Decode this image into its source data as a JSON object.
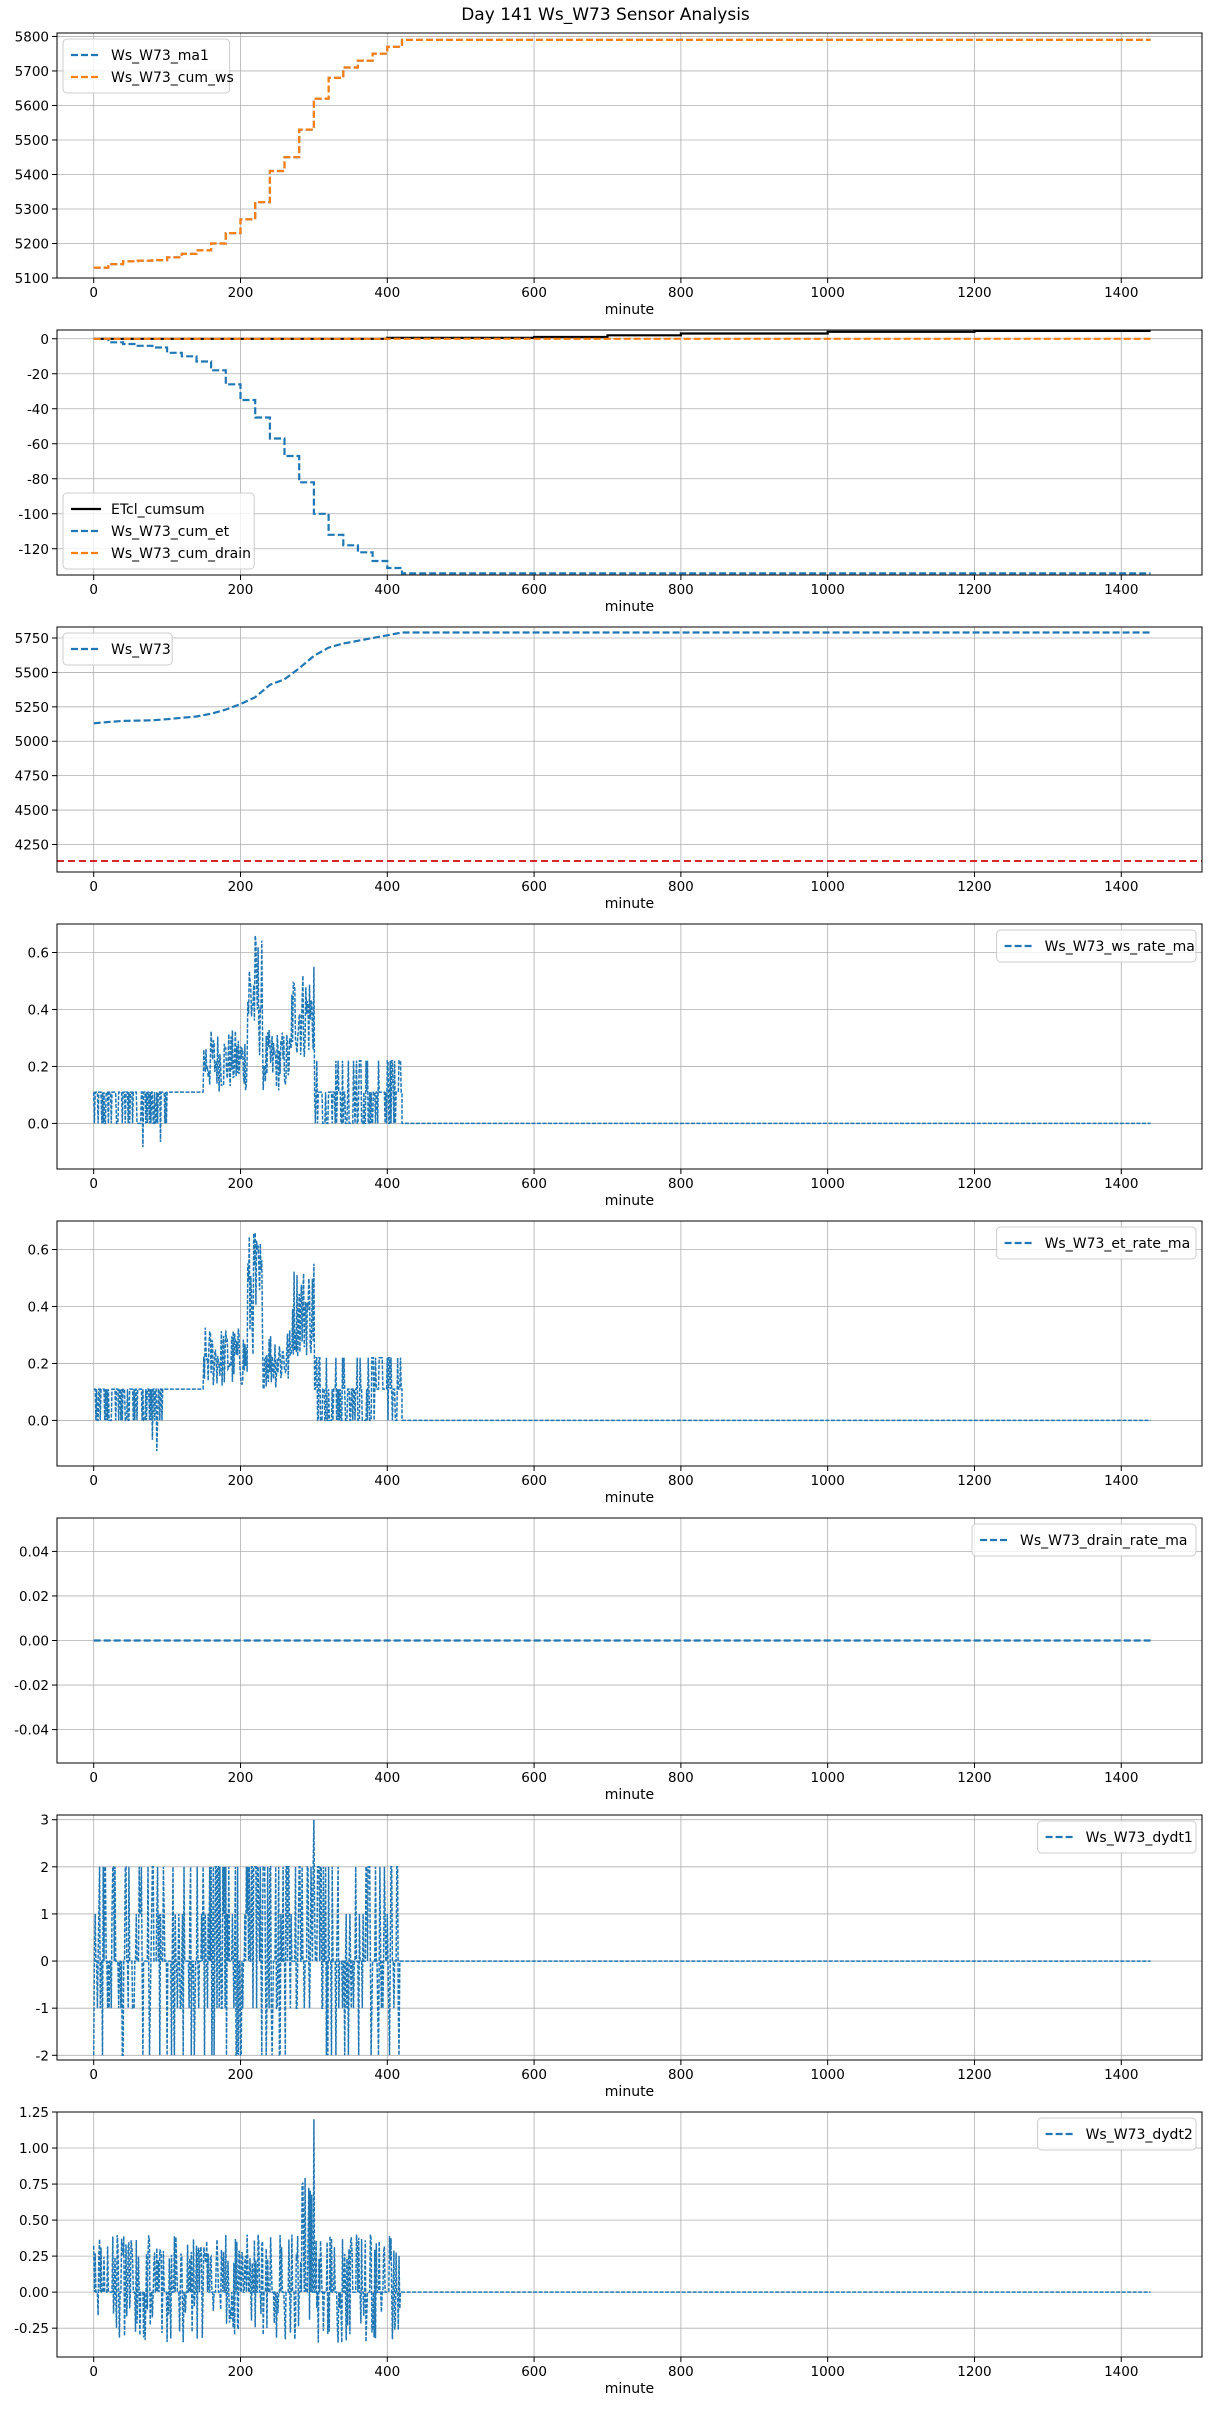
{
  "figure": {
    "title": "Day 141 Ws_W73 Sensor Analysis"
  },
  "colors": {
    "blue": "#1f77b4",
    "orange": "#ff7f0e",
    "black": "#000000",
    "red": "#d62728",
    "grid": "#b0b0b0"
  },
  "chart_data": [
    {
      "type": "line",
      "xlabel": "minute",
      "xlim": [
        -50,
        1510
      ],
      "ylim": [
        5100,
        5810
      ],
      "xticks": [
        0,
        200,
        400,
        600,
        800,
        1000,
        1200,
        1400
      ],
      "yticks": [
        5100,
        5200,
        5300,
        5400,
        5500,
        5600,
        5700,
        5800
      ],
      "legend": "top-left",
      "series": [
        {
          "name": "Ws_W73_ma1",
          "color": "#1f77b4",
          "dash": true,
          "step": true,
          "points": [
            [
              0,
              5130
            ],
            [
              20,
              5140
            ],
            [
              40,
              5148
            ],
            [
              60,
              5150
            ],
            [
              80,
              5152
            ],
            [
              100,
              5160
            ],
            [
              120,
              5170
            ],
            [
              140,
              5180
            ],
            [
              160,
              5200
            ],
            [
              180,
              5230
            ],
            [
              200,
              5270
            ],
            [
              220,
              5320
            ],
            [
              240,
              5410
            ],
            [
              260,
              5450
            ],
            [
              280,
              5530
            ],
            [
              300,
              5620
            ],
            [
              320,
              5680
            ],
            [
              340,
              5710
            ],
            [
              360,
              5730
            ],
            [
              380,
              5750
            ],
            [
              400,
              5770
            ],
            [
              420,
              5790
            ],
            [
              1440,
              5790
            ]
          ]
        },
        {
          "name": "Ws_W73_cum_ws",
          "color": "#ff7f0e",
          "dash": true,
          "step": true,
          "points": [
            [
              0,
              5130
            ],
            [
              20,
              5140
            ],
            [
              40,
              5148
            ],
            [
              60,
              5150
            ],
            [
              80,
              5152
            ],
            [
              100,
              5160
            ],
            [
              120,
              5170
            ],
            [
              140,
              5180
            ],
            [
              160,
              5200
            ],
            [
              180,
              5230
            ],
            [
              200,
              5270
            ],
            [
              220,
              5320
            ],
            [
              240,
              5410
            ],
            [
              260,
              5450
            ],
            [
              280,
              5530
            ],
            [
              300,
              5620
            ],
            [
              320,
              5680
            ],
            [
              340,
              5710
            ],
            [
              360,
              5730
            ],
            [
              380,
              5750
            ],
            [
              400,
              5770
            ],
            [
              420,
              5790
            ],
            [
              1440,
              5790
            ]
          ]
        }
      ]
    },
    {
      "type": "line",
      "xlabel": "minute",
      "xlim": [
        -50,
        1510
      ],
      "ylim": [
        -135,
        5
      ],
      "xticks": [
        0,
        200,
        400,
        600,
        800,
        1000,
        1200,
        1400
      ],
      "yticks": [
        -120,
        -100,
        -80,
        -60,
        -40,
        -20,
        0
      ],
      "legend": "lower-left",
      "series": [
        {
          "name": "ETcl_cumsum",
          "color": "#000000",
          "dash": false,
          "step": true,
          "points": [
            [
              0,
              0
            ],
            [
              200,
              0
            ],
            [
              400,
              0.5
            ],
            [
              600,
              1
            ],
            [
              700,
              2
            ],
            [
              800,
              3
            ],
            [
              1000,
              4
            ],
            [
              1200,
              4.5
            ],
            [
              1440,
              4.5
            ]
          ]
        },
        {
          "name": "Ws_W73_cum_et",
          "color": "#1f77b4",
          "dash": true,
          "step": true,
          "points": [
            [
              0,
              0
            ],
            [
              20,
              -2
            ],
            [
              40,
              -3
            ],
            [
              60,
              -4
            ],
            [
              80,
              -5
            ],
            [
              100,
              -8
            ],
            [
              120,
              -10
            ],
            [
              140,
              -13
            ],
            [
              160,
              -18
            ],
            [
              180,
              -26
            ],
            [
              200,
              -35
            ],
            [
              220,
              -45
            ],
            [
              240,
              -57
            ],
            [
              260,
              -67
            ],
            [
              280,
              -82
            ],
            [
              300,
              -100
            ],
            [
              320,
              -112
            ],
            [
              340,
              -118
            ],
            [
              360,
              -122
            ],
            [
              380,
              -127
            ],
            [
              400,
              -131
            ],
            [
              420,
              -134
            ],
            [
              1440,
              -134
            ]
          ]
        },
        {
          "name": "Ws_W73_cum_drain",
          "color": "#ff7f0e",
          "dash": true,
          "step": false,
          "points": [
            [
              0,
              0
            ],
            [
              1440,
              0
            ]
          ]
        }
      ]
    },
    {
      "type": "line",
      "xlabel": "minute",
      "xlim": [
        -50,
        1510
      ],
      "ylim": [
        4050,
        5830
      ],
      "xticks": [
        0,
        200,
        400,
        600,
        800,
        1000,
        1200,
        1400
      ],
      "yticks": [
        4250,
        4500,
        4750,
        5000,
        5250,
        5500,
        5750
      ],
      "legend": "top-left",
      "hline": {
        "y": 4130,
        "color": "#d62728"
      },
      "series": [
        {
          "name": "Ws_W73",
          "color": "#1f77b4",
          "dash": true,
          "step": false,
          "points": [
            [
              0,
              5130
            ],
            [
              20,
              5140
            ],
            [
              40,
              5148
            ],
            [
              60,
              5150
            ],
            [
              80,
              5152
            ],
            [
              100,
              5160
            ],
            [
              120,
              5170
            ],
            [
              140,
              5180
            ],
            [
              160,
              5200
            ],
            [
              180,
              5230
            ],
            [
              200,
              5270
            ],
            [
              220,
              5320
            ],
            [
              240,
              5410
            ],
            [
              260,
              5450
            ],
            [
              280,
              5530
            ],
            [
              300,
              5620
            ],
            [
              320,
              5680
            ],
            [
              340,
              5710
            ],
            [
              360,
              5730
            ],
            [
              380,
              5750
            ],
            [
              400,
              5770
            ],
            [
              420,
              5790
            ],
            [
              1440,
              5790
            ]
          ]
        }
      ]
    },
    {
      "type": "line",
      "xlabel": "minute",
      "xlim": [
        -50,
        1510
      ],
      "ylim": [
        -0.16,
        0.7
      ],
      "xticks": [
        0,
        200,
        400,
        600,
        800,
        1000,
        1200,
        1400
      ],
      "yticks": [
        0.0,
        0.2,
        0.4,
        0.6
      ],
      "legend": "top-right",
      "series": [
        {
          "name": "Ws_W73_ws_rate_ma",
          "color": "#1f77b4",
          "dash": true,
          "noise": "rate",
          "points": [
            [
              420,
              0
            ],
            [
              1440,
              0
            ]
          ]
        }
      ]
    },
    {
      "type": "line",
      "xlabel": "minute",
      "xlim": [
        -50,
        1510
      ],
      "ylim": [
        -0.16,
        0.7
      ],
      "xticks": [
        0,
        200,
        400,
        600,
        800,
        1000,
        1200,
        1400
      ],
      "yticks": [
        0.0,
        0.2,
        0.4,
        0.6
      ],
      "legend": "top-right",
      "series": [
        {
          "name": "Ws_W73_et_rate_ma",
          "color": "#1f77b4",
          "dash": true,
          "noise": "rate",
          "points": [
            [
              420,
              0
            ],
            [
              1440,
              0
            ]
          ]
        }
      ]
    },
    {
      "type": "line",
      "xlabel": "minute",
      "xlim": [
        -50,
        1510
      ],
      "ylim": [
        -0.055,
        0.055
      ],
      "xticks": [
        0,
        200,
        400,
        600,
        800,
        1000,
        1200,
        1400
      ],
      "yticks": [
        -0.04,
        -0.02,
        0.0,
        0.02,
        0.04
      ],
      "ytick_decimals": 2,
      "legend": "top-right",
      "series": [
        {
          "name": "Ws_W73_drain_rate_ma",
          "color": "#1f77b4",
          "dash": true,
          "points": [
            [
              0,
              0
            ],
            [
              1440,
              0
            ]
          ]
        }
      ]
    },
    {
      "type": "line",
      "xlabel": "minute",
      "xlim": [
        -50,
        1510
      ],
      "ylim": [
        -2.1,
        3.1
      ],
      "xticks": [
        0,
        200,
        400,
        600,
        800,
        1000,
        1200,
        1400
      ],
      "yticks": [
        -2,
        -1,
        0,
        1,
        2,
        3
      ],
      "legend": "top-right",
      "series": [
        {
          "name": "Ws_W73_dydt1",
          "color": "#1f77b4",
          "dash": true,
          "noise": "dydt1",
          "points": [
            [
              420,
              0
            ],
            [
              1440,
              0
            ]
          ]
        }
      ]
    },
    {
      "type": "line",
      "xlabel": "minute",
      "xlim": [
        -50,
        1510
      ],
      "ylim": [
        -0.45,
        1.25
      ],
      "xticks": [
        0,
        200,
        400,
        600,
        800,
        1000,
        1200,
        1400
      ],
      "yticks": [
        -0.25,
        0.0,
        0.25,
        0.5,
        0.75,
        1.0,
        1.25
      ],
      "ytick_decimals": 2,
      "legend": "top-right",
      "series": [
        {
          "name": "Ws_W73_dydt2",
          "color": "#1f77b4",
          "dash": true,
          "noise": "dydt2",
          "points": [
            [
              420,
              0
            ],
            [
              1440,
              0
            ]
          ]
        }
      ]
    }
  ]
}
